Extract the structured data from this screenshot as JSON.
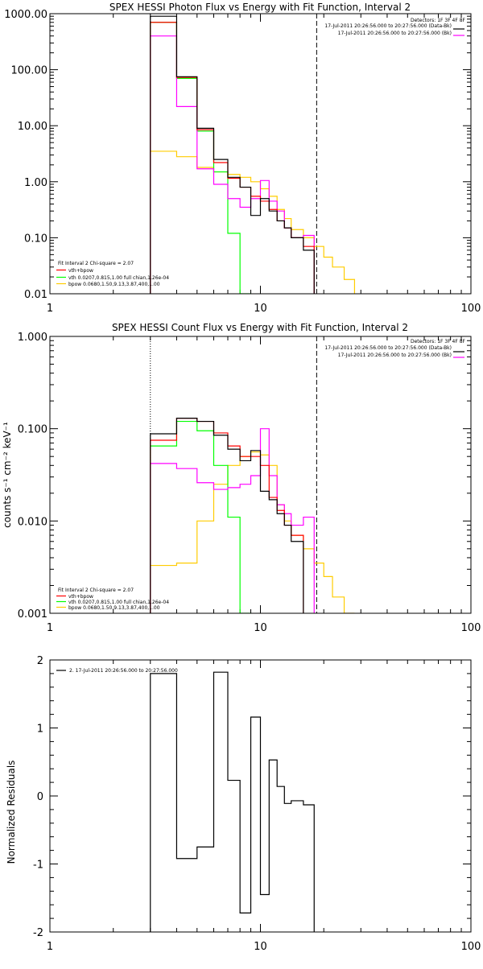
{
  "colors": {
    "data": "#000000",
    "total_fit": "#ff0000",
    "vth": "#00ff00",
    "bpow": "#ffcc00",
    "background": "#ff00ff"
  },
  "chart_data": [
    {
      "type": "line",
      "title": "SPEX HESSI Photon Flux vs Energy with Fit Function, Interval 2",
      "xlabel": "",
      "ylabel": "",
      "xscale": "log",
      "yscale": "log",
      "xlim": [
        1,
        100
      ],
      "ylim": [
        0.01,
        1000
      ],
      "x_ticks": [
        "1",
        "10",
        "100"
      ],
      "y_ticks": [
        "0.01",
        "0.10",
        "1.00",
        "10.00",
        "100.00",
        "1000.00"
      ],
      "vlines": [
        {
          "x": 3,
          "style": "dotted"
        },
        {
          "x": 18.5,
          "style": "dashed"
        }
      ],
      "info_lines": [
        "Detectors: 1F 3F 4F 8F",
        "17-Jul-2011 20:26:56.000 to 20:27:56.000 (Data-Bk)",
        "17-Jul-2011 20:26:56.000 to 20:27:56.000 (Bk)"
      ],
      "legend_lines": [
        "Fit Interval  2    Chi-square = 2.07",
        "vth+bpow",
        "vth  0.0207,0.815,1.00   full chian,1.26e-04",
        "bpow  0.0680,1.50,9.13,3.87,400,1.00"
      ],
      "edges": [
        3,
        4,
        5,
        6,
        7,
        8,
        9,
        10,
        11,
        12,
        13,
        14,
        16,
        18,
        20,
        22,
        25,
        28
      ],
      "series": [
        {
          "role": "data",
          "values": [
            900,
            75,
            9,
            2.5,
            1.2,
            0.8,
            0.25,
            0.5,
            0.3,
            0.2,
            0.15,
            0.1,
            0.06
          ]
        },
        {
          "role": "total_fit",
          "values": [
            700,
            73,
            8.5,
            2.2,
            1.15,
            0.8,
            0.55,
            0.45,
            0.32,
            0.2,
            0.15,
            0.1,
            0.07
          ]
        },
        {
          "role": "vth",
          "values": [
            700,
            70,
            8,
            1.5,
            0.12,
            0.01
          ]
        },
        {
          "role": "bpow",
          "values": [
            3.5,
            2.8,
            1.8,
            1.5,
            1.35,
            1.2,
            1.0,
            0.75,
            0.55,
            0.32,
            0.22,
            0.14,
            0.1,
            0.07,
            0.045,
            0.03,
            0.018
          ]
        },
        {
          "role": "background",
          "values": [
            400,
            22,
            1.7,
            0.9,
            0.5,
            0.35,
            0.5,
            1.05,
            0.45,
            0.3,
            0.15,
            0.1,
            0.11
          ]
        }
      ]
    },
    {
      "type": "line",
      "title": "SPEX HESSI Count Flux vs Energy with Fit Function, Interval 2",
      "xlabel": "",
      "ylabel": "counts s⁻¹ cm⁻² keV⁻¹",
      "xscale": "log",
      "yscale": "log",
      "xlim": [
        1,
        100
      ],
      "ylim": [
        0.001,
        1
      ],
      "x_ticks": [
        "1",
        "10",
        "100"
      ],
      "y_ticks": [
        "0.001",
        "0.010",
        "0.100",
        "1.000"
      ],
      "vlines": [
        {
          "x": 3,
          "style": "dotted"
        },
        {
          "x": 18.5,
          "style": "dashed"
        }
      ],
      "info_lines": [
        "Detectors: 1F 3F 4F 8F",
        "17-Jul-2011 20:26:56.000 to 20:27:56.000 (Data-Bk)",
        "17-Jul-2011 20:26:56.000 to 20:27:56.000 (Bk)"
      ],
      "legend_lines": [
        "Fit Interval  2    Chi-square = 2.07",
        "vth+bpow",
        "vth  0.0207,0.815,1.00   full chian,1.26e-04",
        "bpow  0.0680,1.50,9.13,3.87,400,1.00"
      ],
      "edges": [
        3,
        4,
        5,
        6,
        7,
        8,
        9,
        10,
        11,
        12,
        13,
        14,
        16,
        18,
        20,
        22,
        25,
        28
      ],
      "series": [
        {
          "role": "data",
          "values": [
            0.088,
            0.13,
            0.12,
            0.085,
            0.06,
            0.045,
            0.058,
            0.021,
            0.017,
            0.012,
            0.009,
            0.006
          ]
        },
        {
          "role": "total_fit",
          "values": [
            0.075,
            0.13,
            0.12,
            0.09,
            0.065,
            0.05,
            0.05,
            0.04,
            0.018,
            0.013,
            0.009,
            0.007
          ]
        },
        {
          "role": "vth",
          "values": [
            0.065,
            0.12,
            0.095,
            0.04,
            0.011,
            0.001
          ]
        },
        {
          "role": "bpow",
          "values": [
            0.0033,
            0.0035,
            0.01,
            0.025,
            0.04,
            0.05,
            0.056,
            0.052,
            0.04,
            0.015,
            0.01,
            0.007,
            0.005,
            0.0035,
            0.0025,
            0.0015,
            0.001
          ]
        },
        {
          "role": "background",
          "values": [
            0.042,
            0.037,
            0.026,
            0.022,
            0.023,
            0.025,
            0.031,
            0.1,
            0.031,
            0.015,
            0.012,
            0.009,
            0.011
          ]
        }
      ]
    },
    {
      "type": "line",
      "title": "",
      "xlabel": "",
      "ylabel": "Normalized Residuals",
      "xscale": "log",
      "yscale": "linear",
      "xlim": [
        1,
        100
      ],
      "ylim": [
        -2,
        2
      ],
      "x_ticks": [
        "1",
        "10",
        "100"
      ],
      "y_ticks": [
        "-2",
        "-1",
        "0",
        "1",
        "2"
      ],
      "legend_lines": [
        "2. 17-Jul-2011 20:26:56.000 to 20:27:56.000"
      ],
      "edges": [
        3,
        4,
        5,
        6,
        7,
        8,
        9,
        10,
        11,
        12,
        13,
        14,
        16,
        18
      ],
      "series": [
        {
          "role": "data",
          "values": [
            1.8,
            -0.92,
            -0.75,
            1.82,
            0.23,
            -1.72,
            1.16,
            -1.45,
            0.53,
            0.14,
            -0.11,
            -0.07,
            -0.13
          ]
        }
      ]
    }
  ]
}
